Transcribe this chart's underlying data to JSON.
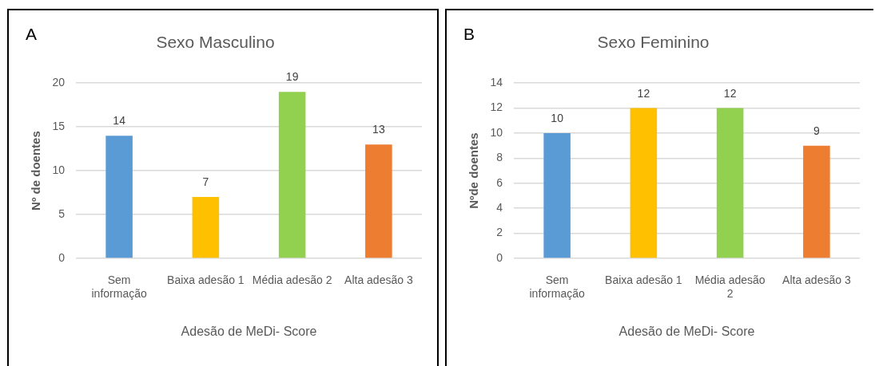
{
  "chart_data": [
    {
      "type": "bar",
      "title": "Sexo Masculino",
      "xlabel": "Adesão de MeDi- Score",
      "ylabel": "Nº de doentes",
      "annotations": [
        "A"
      ],
      "categories": [
        "Sem informação",
        "Baixa adesão 1",
        "Média adesão 2",
        "Alta adesão 3"
      ],
      "values": [
        14,
        7,
        19,
        13
      ],
      "colors": [
        "#5b9bd5",
        "#ffc000",
        "#92d050",
        "#ed7d31"
      ],
      "ylim": [
        0,
        20
      ],
      "yticks": [
        0,
        5,
        10,
        15,
        20
      ],
      "grid": "y",
      "data_labels": true
    },
    {
      "type": "bar",
      "title": "Sexo Feminino",
      "xlabel": "Adesão de MeDi- Score",
      "ylabel": "Nºde doentes",
      "annotations": [
        "B"
      ],
      "categories": [
        "Sem informação",
        "Baixa adesão 1",
        "Média adesão 2",
        "Alta adesão 3"
      ],
      "values": [
        10,
        12,
        12,
        9
      ],
      "colors": [
        "#5b9bd5",
        "#ffc000",
        "#92d050",
        "#ed7d31"
      ],
      "ylim": [
        0,
        14
      ],
      "yticks": [
        0,
        2,
        4,
        6,
        8,
        10,
        12,
        14
      ],
      "grid": "y",
      "data_labels": true
    }
  ]
}
